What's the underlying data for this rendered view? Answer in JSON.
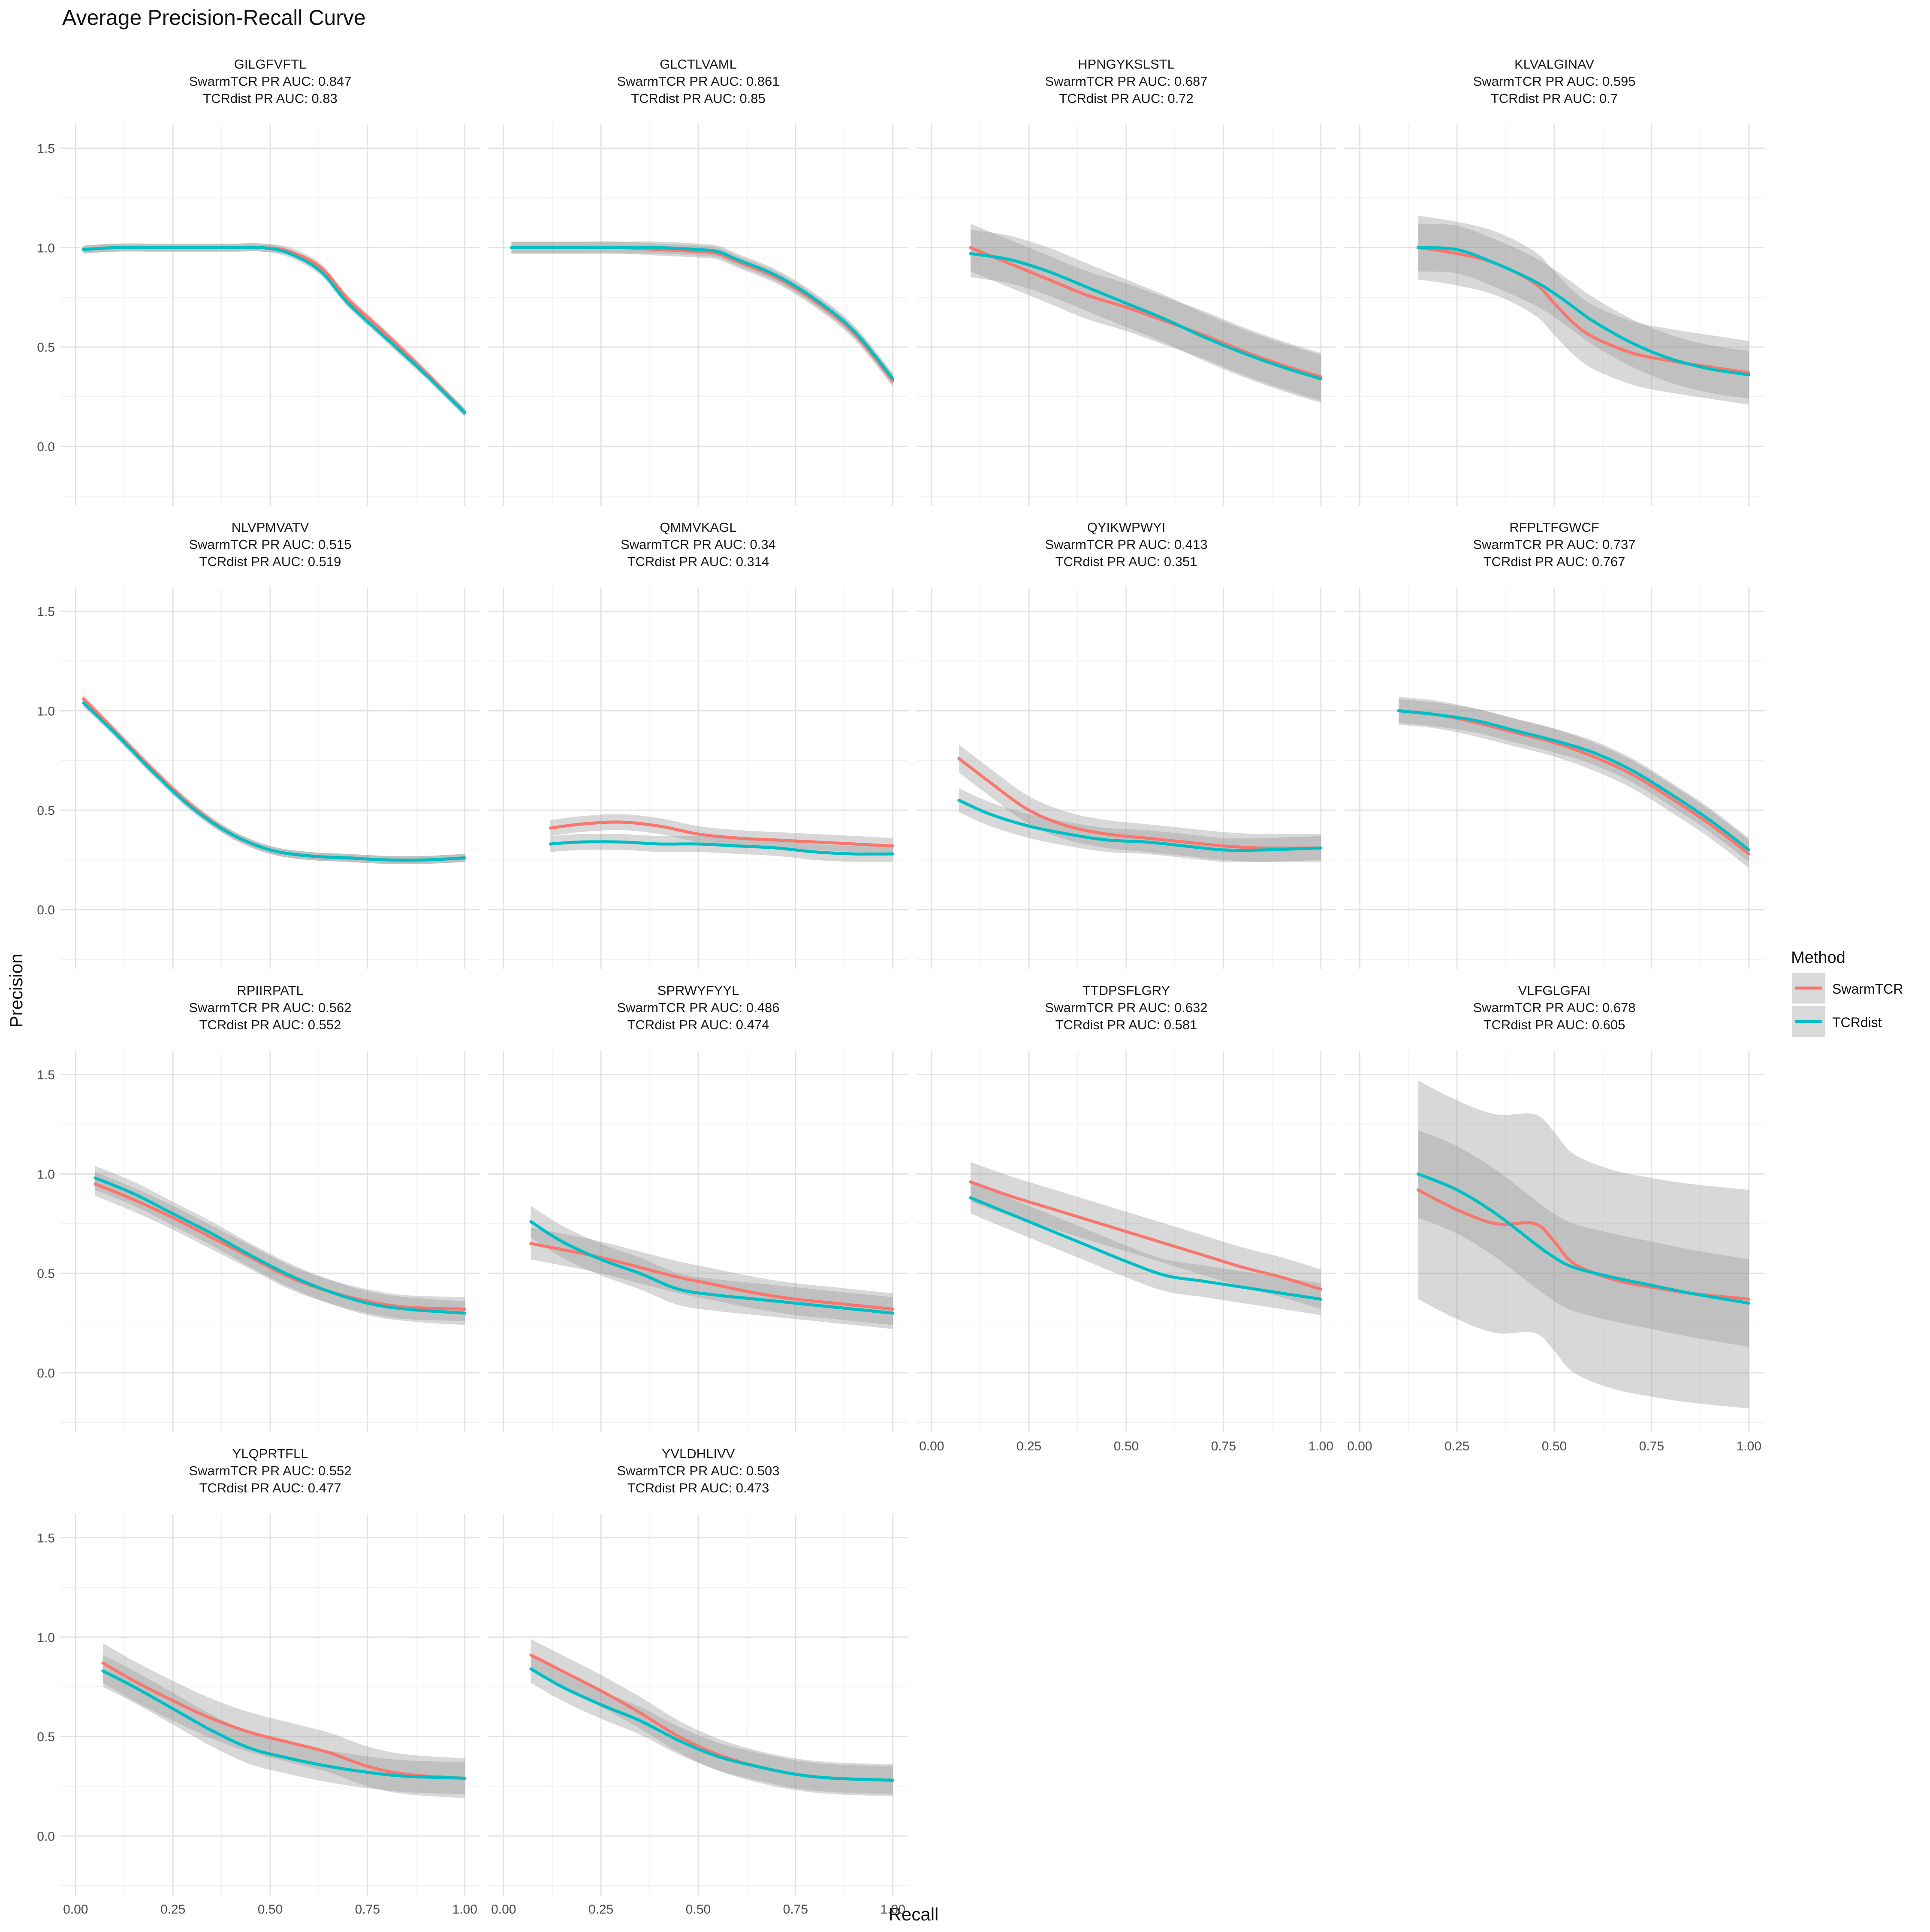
{
  "title": "Average Precision-Recall Curve",
  "xlabel": "Recall",
  "ylabel": "Precision",
  "legend": {
    "title": "Method",
    "placement": "right",
    "items": [
      {
        "name": "SwarmTCR",
        "color": "#F8766D"
      },
      {
        "name": "TCRdist",
        "color": "#00BFC4"
      }
    ]
  },
  "colors": {
    "swarm": "#F8766D",
    "tcrdist": "#00BFC4",
    "ribbon": "#999999"
  },
  "chart_data": {
    "type": "line",
    "facet_layout": "4x4 grid (14 panels)",
    "xlim": [
      0,
      1
    ],
    "ylim": [
      -0.3,
      1.62
    ],
    "x_ticks": [
      "0.00",
      "0.25",
      "0.50",
      "0.75",
      "1.00"
    ],
    "y_ticks": [
      "0.0",
      "0.5",
      "1.0",
      "1.5"
    ],
    "grid": true,
    "series_names": [
      "SwarmTCR",
      "TCRdist"
    ],
    "panels": [
      {
        "name": "GILGFVFTL",
        "swarm_label": "SwarmTCR PR AUC: 0.847",
        "tcr_label": "TCRdist PR AUC: 0.83",
        "swarm": {
          "x": [
            0.02,
            0.1,
            0.2,
            0.3,
            0.4,
            0.48,
            0.55,
            0.63,
            0.7,
            0.8,
            0.9,
            1.0
          ],
          "y": [
            0.99,
            1.0,
            1.0,
            1.0,
            1.0,
            1.0,
            0.98,
            0.9,
            0.74,
            0.56,
            0.37,
            0.17
          ],
          "band": 0.02
        },
        "tcrdist": {
          "x": [
            0.02,
            0.1,
            0.2,
            0.3,
            0.4,
            0.48,
            0.55,
            0.63,
            0.7,
            0.8,
            0.9,
            1.0
          ],
          "y": [
            0.99,
            1.0,
            1.0,
            1.0,
            1.0,
            1.0,
            0.97,
            0.88,
            0.72,
            0.54,
            0.36,
            0.17
          ],
          "band": 0.02
        }
      },
      {
        "name": "GLCTLVAML",
        "swarm_label": "SwarmTCR PR AUC: 0.861",
        "tcr_label": "TCRdist PR AUC: 0.85",
        "swarm": {
          "x": [
            0.02,
            0.1,
            0.2,
            0.3,
            0.4,
            0.5,
            0.55,
            0.6,
            0.7,
            0.8,
            0.9,
            1.0
          ],
          "y": [
            1.0,
            1.0,
            1.0,
            1.0,
            0.99,
            0.98,
            0.97,
            0.93,
            0.85,
            0.73,
            0.57,
            0.33
          ],
          "band": 0.03
        },
        "tcrdist": {
          "x": [
            0.02,
            0.1,
            0.2,
            0.3,
            0.4,
            0.5,
            0.55,
            0.6,
            0.7,
            0.8,
            0.9,
            1.0
          ],
          "y": [
            1.0,
            1.0,
            1.0,
            1.0,
            1.0,
            0.99,
            0.98,
            0.94,
            0.86,
            0.74,
            0.58,
            0.34
          ],
          "band": 0.03
        }
      },
      {
        "name": "HPNGYKSLSTL",
        "swarm_label": "SwarmTCR PR AUC: 0.687",
        "tcr_label": "TCRdist PR AUC: 0.72",
        "swarm": {
          "x": [
            0.1,
            0.2,
            0.3,
            0.4,
            0.5,
            0.6,
            0.7,
            0.8,
            0.9,
            1.0
          ],
          "y": [
            1.0,
            0.92,
            0.84,
            0.76,
            0.7,
            0.63,
            0.56,
            0.48,
            0.41,
            0.35
          ],
          "band": 0.12
        },
        "tcrdist": {
          "x": [
            0.1,
            0.2,
            0.3,
            0.4,
            0.5,
            0.6,
            0.7,
            0.8,
            0.9,
            1.0
          ],
          "y": [
            0.97,
            0.94,
            0.88,
            0.8,
            0.72,
            0.64,
            0.55,
            0.47,
            0.4,
            0.34
          ],
          "band": 0.12
        }
      },
      {
        "name": "KLVALGINAV",
        "swarm_label": "SwarmTCR PR AUC: 0.595",
        "tcr_label": "TCRdist PR AUC: 0.7",
        "swarm": {
          "x": [
            0.15,
            0.25,
            0.35,
            0.45,
            0.5,
            0.55,
            0.6,
            0.7,
            0.8,
            0.9,
            1.0
          ],
          "y": [
            1.0,
            0.97,
            0.92,
            0.82,
            0.72,
            0.62,
            0.55,
            0.47,
            0.43,
            0.4,
            0.37
          ],
          "band": 0.16
        },
        "tcrdist": {
          "x": [
            0.15,
            0.25,
            0.35,
            0.45,
            0.5,
            0.55,
            0.6,
            0.7,
            0.8,
            0.9,
            1.0
          ],
          "y": [
            1.0,
            0.99,
            0.92,
            0.83,
            0.77,
            0.7,
            0.63,
            0.52,
            0.44,
            0.39,
            0.36
          ],
          "band": 0.12
        }
      },
      {
        "name": "NLVPMVATV",
        "swarm_label": "SwarmTCR PR AUC: 0.515",
        "tcr_label": "TCRdist PR AUC: 0.519",
        "swarm": {
          "x": [
            0.02,
            0.1,
            0.2,
            0.3,
            0.4,
            0.5,
            0.6,
            0.7,
            0.8,
            0.9,
            1.0
          ],
          "y": [
            1.06,
            0.9,
            0.7,
            0.52,
            0.38,
            0.3,
            0.27,
            0.26,
            0.25,
            0.25,
            0.26
          ],
          "band": 0.02
        },
        "tcrdist": {
          "x": [
            0.02,
            0.1,
            0.2,
            0.3,
            0.4,
            0.5,
            0.6,
            0.7,
            0.8,
            0.9,
            1.0
          ],
          "y": [
            1.04,
            0.89,
            0.69,
            0.51,
            0.38,
            0.3,
            0.27,
            0.26,
            0.25,
            0.25,
            0.26
          ],
          "band": 0.02
        }
      },
      {
        "name": "QMMVKAGL",
        "swarm_label": "SwarmTCR PR AUC: 0.34",
        "tcr_label": "TCRdist PR AUC: 0.314",
        "swarm": {
          "x": [
            0.12,
            0.2,
            0.3,
            0.4,
            0.5,
            0.6,
            0.7,
            0.8,
            0.9,
            1.0
          ],
          "y": [
            0.41,
            0.43,
            0.44,
            0.42,
            0.38,
            0.36,
            0.35,
            0.34,
            0.33,
            0.32
          ],
          "band": 0.04
        },
        "tcrdist": {
          "x": [
            0.12,
            0.2,
            0.3,
            0.4,
            0.5,
            0.6,
            0.7,
            0.8,
            0.9,
            1.0
          ],
          "y": [
            0.33,
            0.34,
            0.34,
            0.33,
            0.33,
            0.32,
            0.31,
            0.29,
            0.28,
            0.28
          ],
          "band": 0.04
        }
      },
      {
        "name": "QYIKWPWYI",
        "swarm_label": "SwarmTCR PR AUC: 0.413",
        "tcr_label": "TCRdist PR AUC: 0.351",
        "swarm": {
          "x": [
            0.07,
            0.15,
            0.25,
            0.35,
            0.45,
            0.55,
            0.65,
            0.75,
            0.85,
            1.0
          ],
          "y": [
            0.76,
            0.64,
            0.5,
            0.42,
            0.38,
            0.36,
            0.34,
            0.32,
            0.31,
            0.31
          ],
          "band": 0.07
        },
        "tcrdist": {
          "x": [
            0.07,
            0.15,
            0.25,
            0.35,
            0.45,
            0.55,
            0.65,
            0.75,
            0.85,
            1.0
          ],
          "y": [
            0.55,
            0.48,
            0.42,
            0.38,
            0.35,
            0.34,
            0.32,
            0.3,
            0.3,
            0.31
          ],
          "band": 0.06
        }
      },
      {
        "name": "RFPLTFGWCF",
        "swarm_label": "SwarmTCR PR AUC: 0.737",
        "tcr_label": "TCRdist PR AUC: 0.767",
        "swarm": {
          "x": [
            0.1,
            0.2,
            0.3,
            0.4,
            0.5,
            0.6,
            0.7,
            0.8,
            0.9,
            1.0
          ],
          "y": [
            1.0,
            0.98,
            0.94,
            0.89,
            0.84,
            0.77,
            0.68,
            0.56,
            0.43,
            0.28
          ],
          "band": 0.07
        },
        "tcrdist": {
          "x": [
            0.1,
            0.2,
            0.3,
            0.4,
            0.5,
            0.6,
            0.7,
            0.8,
            0.9,
            1.0
          ],
          "y": [
            1.0,
            0.98,
            0.95,
            0.9,
            0.85,
            0.79,
            0.7,
            0.58,
            0.45,
            0.3
          ],
          "band": 0.06
        }
      },
      {
        "name": "RPIIRPATL",
        "swarm_label": "SwarmTCR PR AUC: 0.562",
        "tcr_label": "TCRdist PR AUC: 0.552",
        "swarm": {
          "x": [
            0.05,
            0.15,
            0.25,
            0.35,
            0.45,
            0.55,
            0.65,
            0.75,
            0.85,
            1.0
          ],
          "y": [
            0.95,
            0.87,
            0.78,
            0.68,
            0.58,
            0.48,
            0.41,
            0.36,
            0.33,
            0.32
          ],
          "band": 0.06
        },
        "tcrdist": {
          "x": [
            0.05,
            0.15,
            0.25,
            0.35,
            0.45,
            0.55,
            0.65,
            0.75,
            0.85,
            1.0
          ],
          "y": [
            0.98,
            0.9,
            0.8,
            0.7,
            0.59,
            0.49,
            0.41,
            0.35,
            0.32,
            0.3
          ],
          "band": 0.06
        }
      },
      {
        "name": "SPRWYFYYL",
        "swarm_label": "SwarmTCR PR AUC: 0.486",
        "tcr_label": "TCRdist PR AUC: 0.474",
        "swarm": {
          "x": [
            0.07,
            0.15,
            0.25,
            0.35,
            0.45,
            0.55,
            0.65,
            0.75,
            0.85,
            1.0
          ],
          "y": [
            0.65,
            0.62,
            0.58,
            0.53,
            0.48,
            0.44,
            0.4,
            0.37,
            0.35,
            0.32
          ],
          "band": 0.08
        },
        "tcrdist": {
          "x": [
            0.07,
            0.15,
            0.25,
            0.35,
            0.45,
            0.55,
            0.65,
            0.75,
            0.85,
            1.0
          ],
          "y": [
            0.76,
            0.66,
            0.57,
            0.5,
            0.42,
            0.39,
            0.37,
            0.35,
            0.33,
            0.3
          ],
          "band": 0.08
        }
      },
      {
        "name": "TTDPSFLGRY",
        "swarm_label": "SwarmTCR PR AUC: 0.632",
        "tcr_label": "TCRdist PR AUC: 0.581",
        "swarm": {
          "x": [
            0.1,
            0.2,
            0.3,
            0.4,
            0.5,
            0.6,
            0.7,
            0.8,
            0.9,
            1.0
          ],
          "y": [
            0.96,
            0.89,
            0.83,
            0.77,
            0.71,
            0.65,
            0.59,
            0.53,
            0.48,
            0.42
          ],
          "band": 0.1
        },
        "tcrdist": {
          "x": [
            0.1,
            0.2,
            0.3,
            0.4,
            0.5,
            0.6,
            0.7,
            0.8,
            0.9,
            1.0
          ],
          "y": [
            0.88,
            0.8,
            0.72,
            0.64,
            0.56,
            0.49,
            0.46,
            0.43,
            0.4,
            0.37
          ],
          "band": 0.08
        }
      },
      {
        "name": "VLFGLGFAI",
        "swarm_label": "SwarmTCR PR AUC: 0.678",
        "tcr_label": "TCRdist PR AUC: 0.605",
        "swarm": {
          "x": [
            0.15,
            0.25,
            0.35,
            0.45,
            0.5,
            0.55,
            0.65,
            0.75,
            0.85,
            1.0
          ],
          "y": [
            0.92,
            0.82,
            0.75,
            0.75,
            0.66,
            0.55,
            0.47,
            0.43,
            0.4,
            0.37
          ],
          "band": 0.55
        },
        "tcrdist": {
          "x": [
            0.15,
            0.25,
            0.35,
            0.45,
            0.5,
            0.55,
            0.65,
            0.75,
            0.85,
            1.0
          ],
          "y": [
            1.0,
            0.92,
            0.8,
            0.65,
            0.58,
            0.53,
            0.48,
            0.44,
            0.4,
            0.35
          ],
          "band": 0.22
        }
      },
      {
        "name": "YLQPRTFLL",
        "swarm_label": "SwarmTCR PR AUC: 0.552",
        "tcr_label": "TCRdist PR AUC: 0.477",
        "swarm": {
          "x": [
            0.07,
            0.15,
            0.25,
            0.35,
            0.45,
            0.55,
            0.65,
            0.75,
            0.85,
            1.0
          ],
          "y": [
            0.87,
            0.78,
            0.68,
            0.59,
            0.52,
            0.47,
            0.42,
            0.35,
            0.31,
            0.29
          ],
          "band": 0.1
        },
        "tcrdist": {
          "x": [
            0.07,
            0.15,
            0.25,
            0.35,
            0.45,
            0.55,
            0.65,
            0.75,
            0.85,
            1.0
          ],
          "y": [
            0.83,
            0.75,
            0.64,
            0.53,
            0.44,
            0.39,
            0.35,
            0.32,
            0.3,
            0.29
          ],
          "band": 0.08
        }
      },
      {
        "name": "YVLDHLIVV",
        "swarm_label": "SwarmTCR PR AUC: 0.503",
        "tcr_label": "TCRdist PR AUC: 0.473",
        "swarm": {
          "x": [
            0.07,
            0.15,
            0.25,
            0.35,
            0.45,
            0.55,
            0.65,
            0.75,
            0.85,
            1.0
          ],
          "y": [
            0.91,
            0.83,
            0.73,
            0.62,
            0.5,
            0.41,
            0.35,
            0.31,
            0.29,
            0.28
          ],
          "band": 0.08
        },
        "tcrdist": {
          "x": [
            0.07,
            0.15,
            0.25,
            0.35,
            0.45,
            0.55,
            0.65,
            0.75,
            0.85,
            1.0
          ],
          "y": [
            0.84,
            0.75,
            0.66,
            0.58,
            0.48,
            0.4,
            0.35,
            0.31,
            0.29,
            0.28
          ],
          "band": 0.07
        }
      }
    ]
  }
}
